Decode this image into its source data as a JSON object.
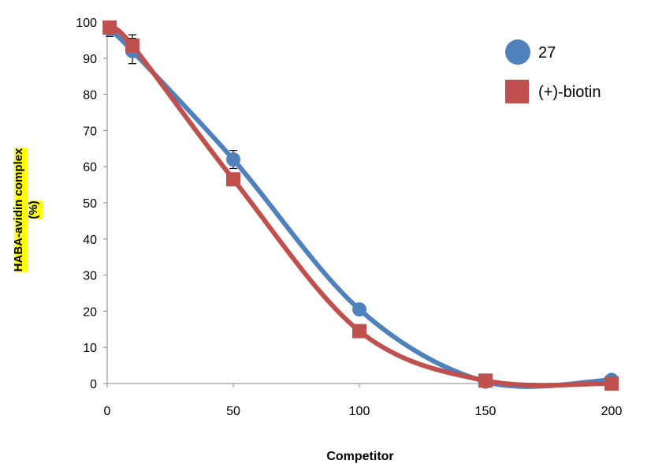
{
  "chart_data": {
    "type": "line",
    "xlabel": "Competitor",
    "ylabel_lines": [
      "HABA-avidin complex",
      "(%)"
    ],
    "xlim": [
      0,
      200
    ],
    "ylim": [
      0,
      100
    ],
    "xticks": [
      0,
      50,
      100,
      150,
      200
    ],
    "yticks": [
      0,
      10,
      20,
      30,
      40,
      50,
      60,
      70,
      80,
      90,
      100
    ],
    "grid": false,
    "legend_position": "top-right",
    "series": [
      {
        "name": "27",
        "marker": "circle",
        "color": "#4F81BD",
        "x": [
          1,
          10,
          50,
          100,
          150,
          200
        ],
        "y": [
          98,
          92,
          62,
          20.5,
          0.5,
          1
        ],
        "err": [
          2,
          3.5,
          2.5,
          0,
          0,
          0
        ]
      },
      {
        "name": "(+)-biotin",
        "marker": "square",
        "color": "#C0504D",
        "x": [
          1,
          10,
          50,
          100,
          150,
          200
        ],
        "y": [
          98.5,
          93.5,
          56.5,
          14.5,
          0.8,
          0
        ],
        "err": [
          0,
          3,
          0,
          0,
          0,
          0
        ]
      }
    ]
  }
}
